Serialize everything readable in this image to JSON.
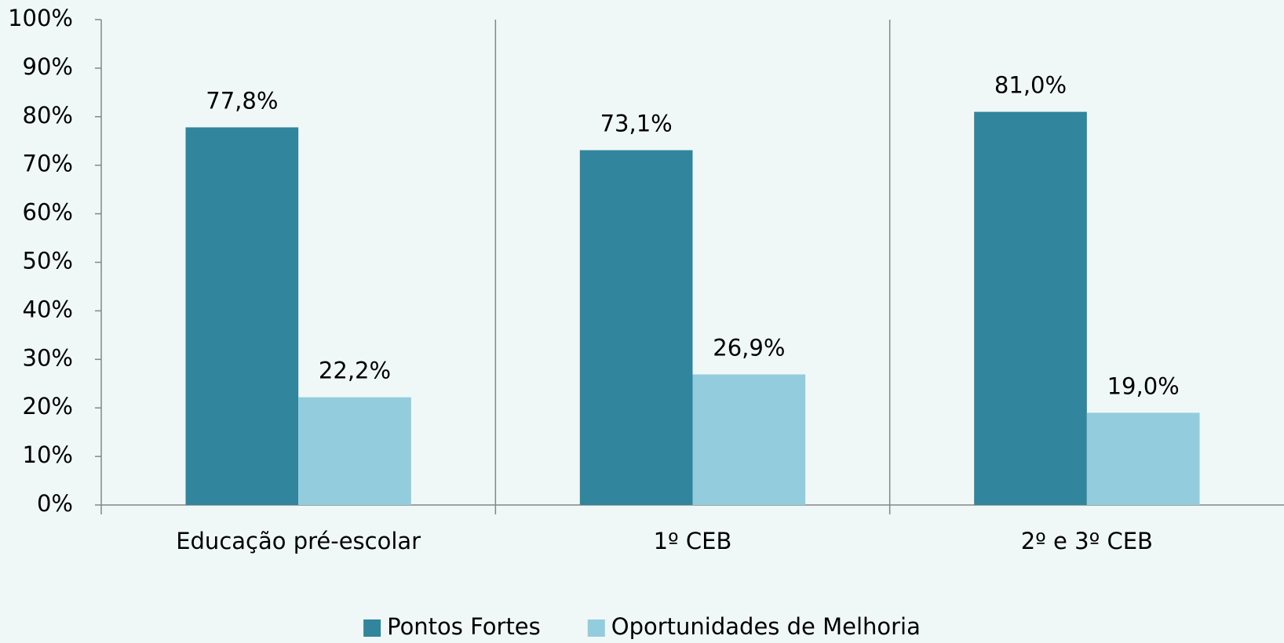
{
  "chart_data": {
    "type": "bar",
    "categories": [
      "Educação pré-escolar",
      "1º CEB",
      "2º e 3º CEB"
    ],
    "series": [
      {
        "name": "Pontos Fortes",
        "color": "#31859c",
        "values": [
          77.8,
          73.1,
          81.0
        ],
        "value_labels": [
          "77,8%",
          "73,1%",
          "81,0%"
        ]
      },
      {
        "name": "Oportunidades de Melhoria",
        "color": "#93cddd",
        "values": [
          22.2,
          26.9,
          19.0
        ],
        "value_labels": [
          "22,2%",
          "26,9%",
          "19,0%"
        ]
      }
    ],
    "ylim": [
      0,
      100
    ],
    "yticks": [
      {
        "value": 0,
        "label": "0%"
      },
      {
        "value": 10,
        "label": "10%"
      },
      {
        "value": 20,
        "label": "20%"
      },
      {
        "value": 30,
        "label": "30%"
      },
      {
        "value": 40,
        "label": "40%"
      },
      {
        "value": 50,
        "label": "50%"
      },
      {
        "value": 60,
        "label": "60%"
      },
      {
        "value": 70,
        "label": "70%"
      },
      {
        "value": 80,
        "label": "80%"
      },
      {
        "value": 90,
        "label": "90%"
      },
      {
        "value": 100,
        "label": "100%"
      }
    ],
    "legend": "bottom"
  }
}
